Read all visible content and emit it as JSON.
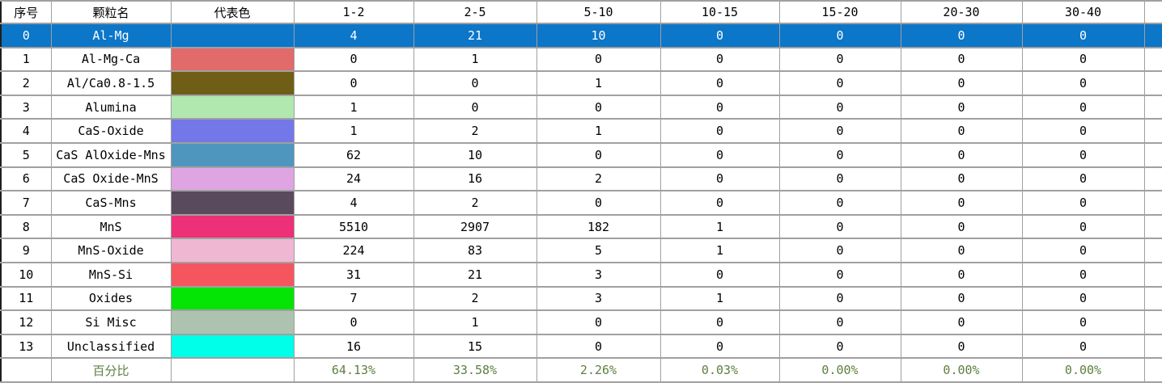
{
  "table": {
    "columns": [
      "序号",
      "颗粒名",
      "代表色",
      "1-2",
      "2-5",
      "5-10",
      "10-15",
      "15-20",
      "20-30",
      "30-40"
    ],
    "rows": [
      {
        "index": "0",
        "name": "Al-Mg",
        "color": null,
        "selected": true,
        "values": [
          "4",
          "21",
          "10",
          "0",
          "0",
          "0",
          "0"
        ]
      },
      {
        "index": "1",
        "name": "Al-Mg-Ca",
        "color": "#e16a6a",
        "selected": false,
        "values": [
          "0",
          "1",
          "0",
          "0",
          "0",
          "0",
          "0"
        ]
      },
      {
        "index": "2",
        "name": "Al/Ca0.8-1.5",
        "color": "#6f5e16",
        "selected": false,
        "values": [
          "0",
          "0",
          "1",
          "0",
          "0",
          "0",
          "0"
        ]
      },
      {
        "index": "3",
        "name": "Alumina",
        "color": "#b0e8b0",
        "selected": false,
        "values": [
          "1",
          "0",
          "0",
          "0",
          "0",
          "0",
          "0"
        ]
      },
      {
        "index": "4",
        "name": "CaS-Oxide",
        "color": "#7477e8",
        "selected": false,
        "values": [
          "1",
          "2",
          "1",
          "0",
          "0",
          "0",
          "0"
        ]
      },
      {
        "index": "5",
        "name": "CaS AlOxide-Mns",
        "color": "#4e96be",
        "selected": false,
        "values": [
          "62",
          "10",
          "0",
          "0",
          "0",
          "0",
          "0"
        ]
      },
      {
        "index": "6",
        "name": "CaS Oxide-MnS",
        "color": "#dfa5e3",
        "selected": false,
        "values": [
          "24",
          "16",
          "2",
          "0",
          "0",
          "0",
          "0"
        ]
      },
      {
        "index": "7",
        "name": "CaS-Mns",
        "color": "#5a4a5e",
        "selected": false,
        "values": [
          "4",
          "2",
          "0",
          "0",
          "0",
          "0",
          "0"
        ]
      },
      {
        "index": "8",
        "name": "MnS",
        "color": "#ed3078",
        "selected": false,
        "values": [
          "5510",
          "2907",
          "182",
          "1",
          "0",
          "0",
          "0"
        ]
      },
      {
        "index": "9",
        "name": "MnS-Oxide",
        "color": "#efb7d2",
        "selected": false,
        "values": [
          "224",
          "83",
          "5",
          "1",
          "0",
          "0",
          "0"
        ]
      },
      {
        "index": "10",
        "name": "MnS-Si",
        "color": "#f5555e",
        "selected": false,
        "values": [
          "31",
          "21",
          "3",
          "0",
          "0",
          "0",
          "0"
        ]
      },
      {
        "index": "11",
        "name": "Oxides",
        "color": "#06e406",
        "selected": false,
        "values": [
          "7",
          "2",
          "3",
          "1",
          "0",
          "0",
          "0"
        ]
      },
      {
        "index": "12",
        "name": "Si Misc",
        "color": "#aec3af",
        "selected": false,
        "values": [
          "0",
          "1",
          "0",
          "0",
          "0",
          "0",
          "0"
        ]
      },
      {
        "index": "13",
        "name": "Unclassified",
        "color": "#00ffe8",
        "selected": false,
        "values": [
          "16",
          "15",
          "0",
          "0",
          "0",
          "0",
          "0"
        ]
      }
    ],
    "summary": {
      "label": "百分比",
      "values": [
        "64.13%",
        "33.58%",
        "2.26%",
        "0.03%",
        "0.00%",
        "0.00%",
        "0.00%"
      ]
    },
    "colors": {
      "selection": "#0c76c8",
      "selection_text": "#ffffff",
      "percent_text": "#5d7f3f",
      "grid_line": "#a0a0a0"
    }
  }
}
